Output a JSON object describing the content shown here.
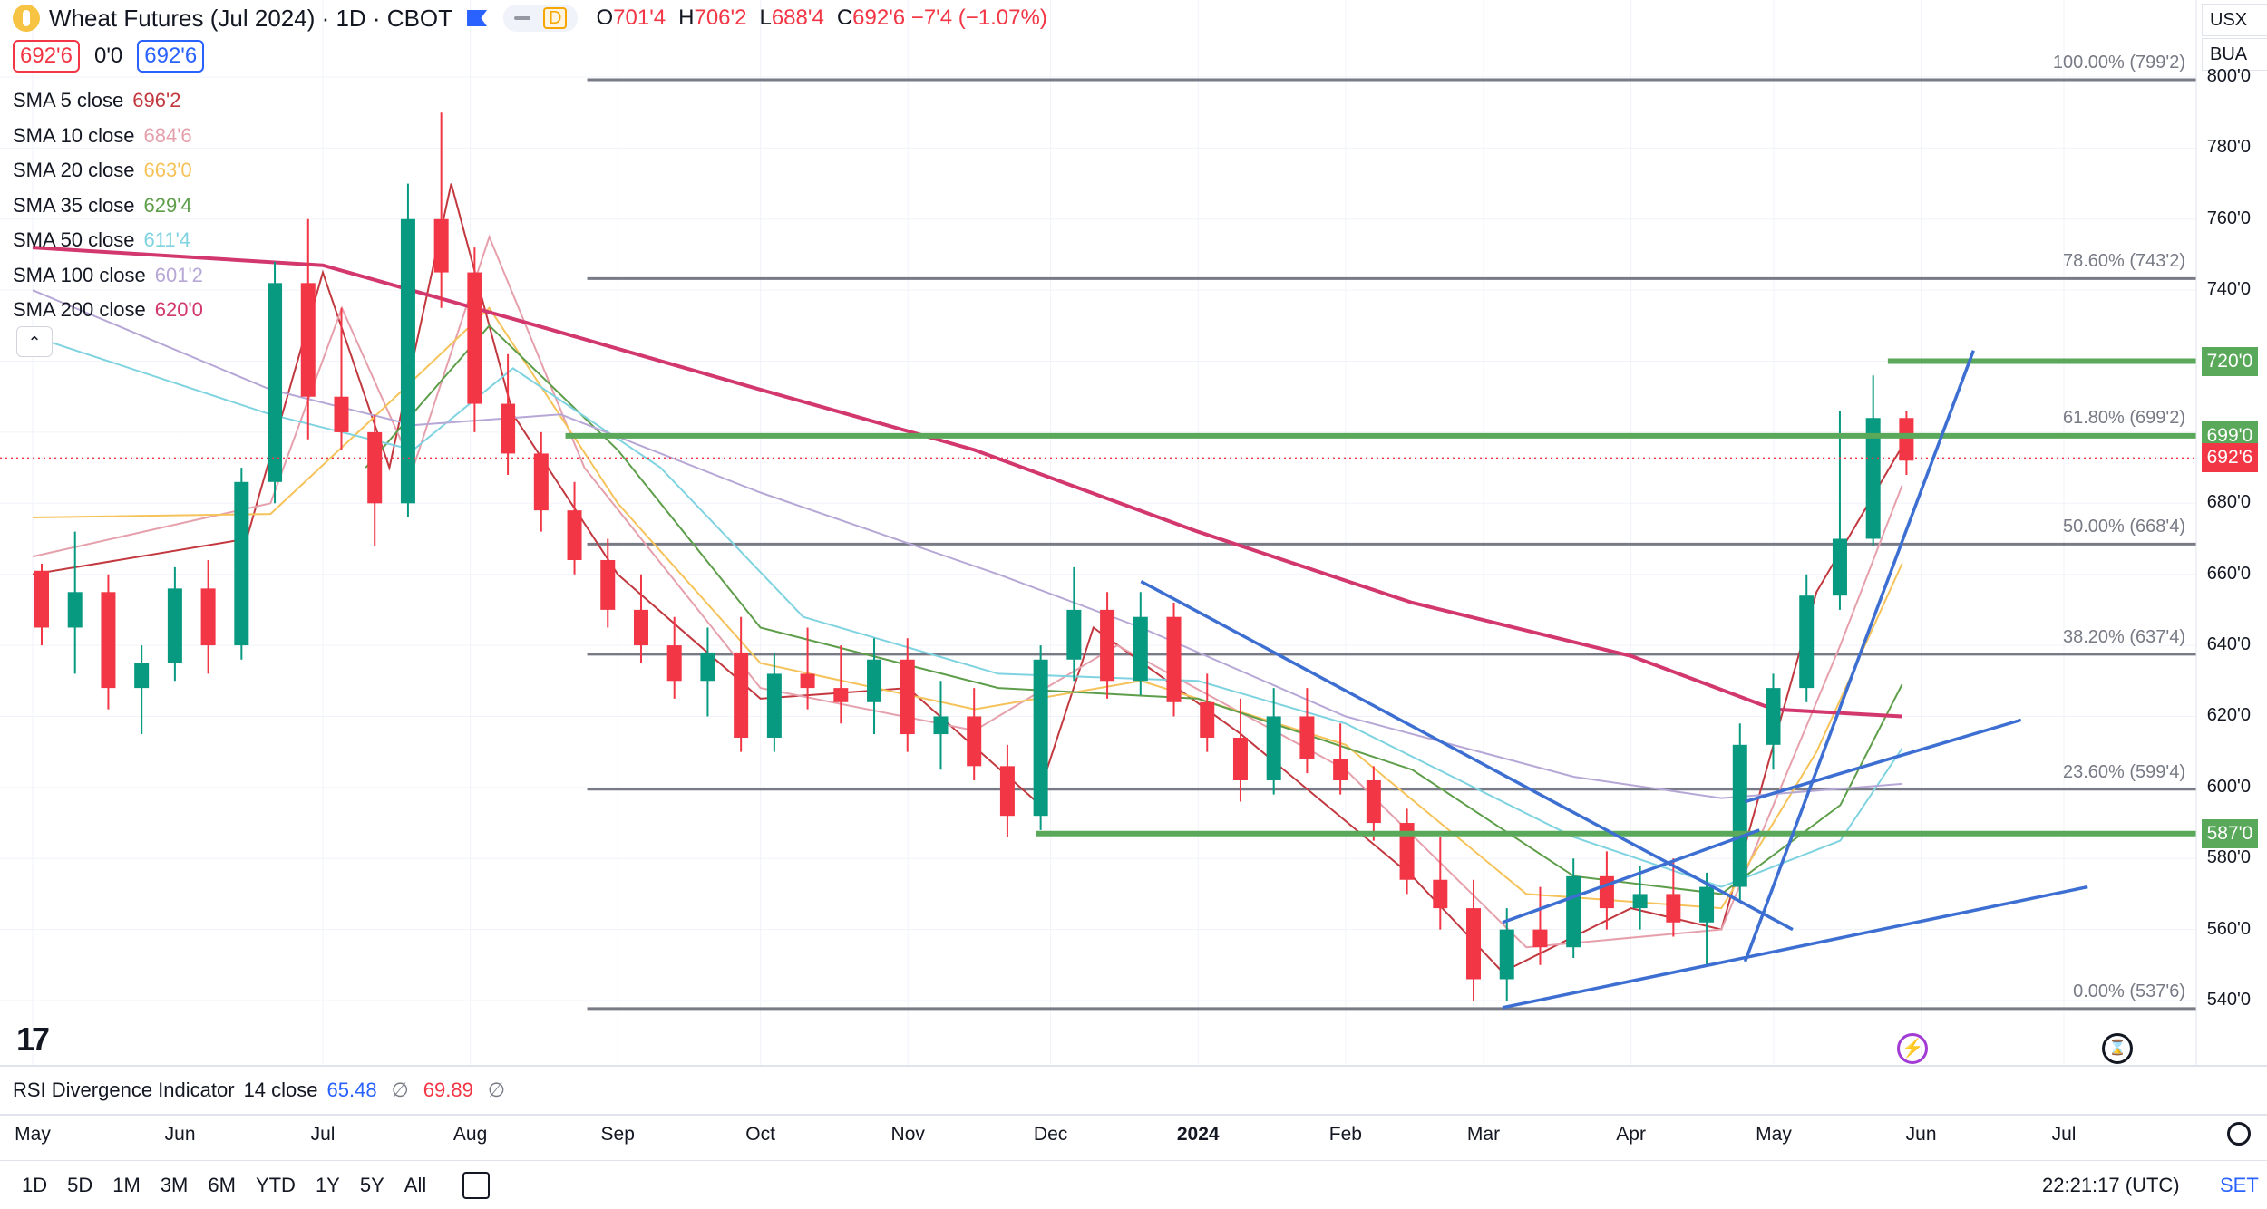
{
  "header": {
    "title": "Wheat Futures (Jul 2024) · 1D · CBOT",
    "mode_label": "D",
    "ohlc": [
      {
        "k": "O",
        "v": "701'4"
      },
      {
        "k": "H",
        "v": "706'2"
      },
      {
        "k": "L",
        "v": "688'4"
      },
      {
        "k": "C",
        "v": "692'6 −7'4 (−1.07%)"
      }
    ],
    "sell_price": "692'6",
    "spread": "0'0",
    "buy_price": "692'6"
  },
  "right_controls": {
    "currency": "USX",
    "unit": "BUA"
  },
  "legend": [
    {
      "name": "SMA 5 close",
      "value": "696'2",
      "color": "#c2383f"
    },
    {
      "name": "SMA 10 close",
      "value": "684'6",
      "color": "#e5a0ac"
    },
    {
      "name": "SMA 20 close",
      "value": "663'0",
      "color": "#f5c35a"
    },
    {
      "name": "SMA 35 close",
      "value": "629'4",
      "color": "#5e9e4a"
    },
    {
      "name": "SMA 50 close",
      "value": "611'4",
      "color": "#7fd3e0"
    },
    {
      "name": "SMA 100 close",
      "value": "601'2",
      "color": "#b7a7d6"
    },
    {
      "name": "SMA 200 close",
      "value": "620'0",
      "color": "#d2376e"
    }
  ],
  "rsi": {
    "label": "RSI Divergence Indicator",
    "params": "14 close",
    "value1": "65.48",
    "value2": "69.89",
    "glyph": "∅"
  },
  "collapse_glyph": "⌃",
  "tv_logo": "17",
  "bottom_bar": {
    "ranges": [
      "1D",
      "5D",
      "1M",
      "3M",
      "6M",
      "YTD",
      "1Y",
      "5Y",
      "All"
    ],
    "clock": "22:21:17 (UTC)",
    "session": "SET"
  },
  "chart_data": {
    "type": "candlestick",
    "x_axis": {
      "ticks": [
        {
          "label": "May",
          "date": "2023-05-01"
        },
        {
          "label": "Jun",
          "date": "2023-06-01"
        },
        {
          "label": "Jul",
          "date": "2023-07-01"
        },
        {
          "label": "Aug",
          "date": "2023-08-01"
        },
        {
          "label": "Sep",
          "date": "2023-09-01"
        },
        {
          "label": "Oct",
          "date": "2023-10-01"
        },
        {
          "label": "Nov",
          "date": "2023-11-01"
        },
        {
          "label": "Dec",
          "date": "2023-12-01"
        },
        {
          "label": "2024",
          "date": "2024-01-01",
          "bold": true
        },
        {
          "label": "Feb",
          "date": "2024-02-01"
        },
        {
          "label": "Mar",
          "date": "2024-03-01"
        },
        {
          "label": "Apr",
          "date": "2024-04-01"
        },
        {
          "label": "May",
          "date": "2024-05-01"
        },
        {
          "label": "Jun",
          "date": "2024-06-01"
        },
        {
          "label": "Jul",
          "date": "2024-07-01"
        }
      ]
    },
    "y_axis": {
      "ylim": [
        525,
        805
      ],
      "ticks": [
        "800'0",
        "780'0",
        "760'0",
        "740'0",
        "720'0",
        "700'0",
        "680'0",
        "660'0",
        "640'0",
        "620'0",
        "600'0",
        "580'0",
        "560'0",
        "540'0"
      ],
      "tick_values": [
        800,
        780,
        760,
        740,
        720,
        700,
        680,
        660,
        640,
        620,
        600,
        580,
        560,
        540
      ]
    },
    "candles": [
      [
        "2023-05-01",
        661,
        663,
        640,
        645
      ],
      [
        "2023-05-08",
        645,
        672,
        632,
        655
      ],
      [
        "2023-05-15",
        655,
        660,
        622,
        628
      ],
      [
        "2023-05-22",
        628,
        640,
        615,
        635
      ],
      [
        "2023-05-29",
        635,
        662,
        630,
        656
      ],
      [
        "2023-06-05",
        656,
        664,
        632,
        640
      ],
      [
        "2023-06-12",
        640,
        690,
        636,
        686
      ],
      [
        "2023-06-19",
        686,
        748,
        680,
        742
      ],
      [
        "2023-06-26",
        742,
        760,
        698,
        710
      ],
      [
        "2023-07-03",
        710,
        735,
        695,
        700
      ],
      [
        "2023-07-10",
        700,
        705,
        668,
        680
      ],
      [
        "2023-07-17",
        680,
        770,
        676,
        760
      ],
      [
        "2023-07-24",
        760,
        790,
        735,
        745
      ],
      [
        "2023-07-31",
        745,
        752,
        700,
        708
      ],
      [
        "2023-08-07",
        708,
        722,
        688,
        694
      ],
      [
        "2023-08-14",
        694,
        700,
        672,
        678
      ],
      [
        "2023-08-21",
        678,
        686,
        660,
        664
      ],
      [
        "2023-08-28",
        664,
        670,
        645,
        650
      ],
      [
        "2023-09-04",
        650,
        660,
        635,
        640
      ],
      [
        "2023-09-11",
        640,
        648,
        625,
        630
      ],
      [
        "2023-09-18",
        630,
        645,
        620,
        638
      ],
      [
        "2023-09-25",
        638,
        648,
        610,
        614
      ],
      [
        "2023-10-02",
        614,
        638,
        610,
        632
      ],
      [
        "2023-10-09",
        632,
        645,
        622,
        628
      ],
      [
        "2023-10-16",
        628,
        640,
        618,
        624
      ],
      [
        "2023-10-23",
        624,
        642,
        615,
        636
      ],
      [
        "2023-10-30",
        636,
        642,
        610,
        615
      ],
      [
        "2023-11-06",
        615,
        630,
        605,
        620
      ],
      [
        "2023-11-13",
        620,
        628,
        602,
        606
      ],
      [
        "2023-11-20",
        606,
        612,
        586,
        592
      ],
      [
        "2023-11-27",
        592,
        640,
        588,
        636
      ],
      [
        "2023-12-04",
        636,
        662,
        630,
        650
      ],
      [
        "2023-12-11",
        650,
        655,
        625,
        630
      ],
      [
        "2023-12-18",
        630,
        655,
        626,
        648
      ],
      [
        "2023-12-25",
        648,
        652,
        620,
        624
      ],
      [
        "2024-01-01",
        624,
        632,
        610,
        614
      ],
      [
        "2024-01-08",
        614,
        625,
        596,
        602
      ],
      [
        "2024-01-15",
        602,
        628,
        598,
        620
      ],
      [
        "2024-01-22",
        620,
        628,
        604,
        608
      ],
      [
        "2024-01-29",
        608,
        618,
        598,
        602
      ],
      [
        "2024-02-05",
        602,
        606,
        585,
        590
      ],
      [
        "2024-02-12",
        590,
        594,
        570,
        574
      ],
      [
        "2024-02-19",
        574,
        586,
        560,
        566
      ],
      [
        "2024-02-26",
        566,
        574,
        540,
        546
      ],
      [
        "2024-03-04",
        546,
        566,
        540,
        560
      ],
      [
        "2024-03-11",
        560,
        572,
        550,
        555
      ],
      [
        "2024-03-18",
        555,
        580,
        552,
        575
      ],
      [
        "2024-03-25",
        575,
        582,
        560,
        566
      ],
      [
        "2024-04-01",
        566,
        578,
        560,
        570
      ],
      [
        "2024-04-08",
        570,
        580,
        558,
        562
      ],
      [
        "2024-04-15",
        562,
        576,
        550,
        572
      ],
      [
        "2024-04-22",
        572,
        618,
        568,
        612
      ],
      [
        "2024-04-29",
        612,
        632,
        605,
        628
      ],
      [
        "2024-05-06",
        628,
        660,
        624,
        654
      ],
      [
        "2024-05-13",
        654,
        706,
        650,
        670
      ],
      [
        "2024-05-20",
        670,
        716,
        668,
        704
      ],
      [
        "2024-05-27",
        704,
        706,
        688,
        692
      ]
    ],
    "series": [
      {
        "name": "SMA 5 close",
        "color": "#c2383f",
        "points": [
          [
            "2023-05-01",
            660
          ],
          [
            "2023-06-15",
            670
          ],
          [
            "2023-07-01",
            745
          ],
          [
            "2023-07-15",
            690
          ],
          [
            "2023-07-28",
            770
          ],
          [
            "2023-08-10",
            705
          ],
          [
            "2023-09-01",
            660
          ],
          [
            "2023-10-01",
            625
          ],
          [
            "2023-11-01",
            628
          ],
          [
            "2023-11-28",
            596
          ],
          [
            "2023-12-10",
            645
          ],
          [
            "2024-01-10",
            615
          ],
          [
            "2024-02-15",
            575
          ],
          [
            "2024-03-05",
            548
          ],
          [
            "2024-04-01",
            566
          ],
          [
            "2024-04-20",
            560
          ],
          [
            "2024-05-10",
            655
          ],
          [
            "2024-05-28",
            696
          ]
        ]
      },
      {
        "name": "SMA 10 close",
        "color": "#e5a0ac",
        "points": [
          [
            "2023-05-01",
            665
          ],
          [
            "2023-06-20",
            680
          ],
          [
            "2023-07-05",
            735
          ],
          [
            "2023-07-20",
            690
          ],
          [
            "2023-08-05",
            755
          ],
          [
            "2023-08-25",
            690
          ],
          [
            "2023-10-01",
            628
          ],
          [
            "2023-11-15",
            616
          ],
          [
            "2023-12-15",
            640
          ],
          [
            "2024-02-01",
            605
          ],
          [
            "2024-03-10",
            555
          ],
          [
            "2024-04-20",
            560
          ],
          [
            "2024-05-15",
            640
          ],
          [
            "2024-05-28",
            685
          ]
        ]
      },
      {
        "name": "SMA 20 close",
        "color": "#f5c35a",
        "points": [
          [
            "2023-05-01",
            676
          ],
          [
            "2023-06-20",
            677
          ],
          [
            "2023-07-10",
            702
          ],
          [
            "2023-08-05",
            735
          ],
          [
            "2023-09-01",
            680
          ],
          [
            "2023-10-01",
            635
          ],
          [
            "2023-11-15",
            622
          ],
          [
            "2023-12-20",
            630
          ],
          [
            "2024-02-01",
            612
          ],
          [
            "2024-03-10",
            570
          ],
          [
            "2024-04-20",
            566
          ],
          [
            "2024-05-10",
            610
          ],
          [
            "2024-05-28",
            663
          ]
        ]
      },
      {
        "name": "SMA 35 close",
        "color": "#5e9e4a",
        "points": [
          [
            "2023-07-10",
            690
          ],
          [
            "2023-08-05",
            730
          ],
          [
            "2023-09-01",
            695
          ],
          [
            "2023-10-01",
            645
          ],
          [
            "2023-11-20",
            628
          ],
          [
            "2024-01-01",
            625
          ],
          [
            "2024-02-15",
            605
          ],
          [
            "2024-03-20",
            575
          ],
          [
            "2024-04-20",
            570
          ],
          [
            "2024-05-15",
            595
          ],
          [
            "2024-05-28",
            629
          ]
        ]
      },
      {
        "name": "SMA 50 close",
        "color": "#7fd3e0",
        "points": [
          [
            "2023-05-01",
            727
          ],
          [
            "2023-06-20",
            705
          ],
          [
            "2023-07-20",
            695
          ],
          [
            "2023-08-10",
            718
          ],
          [
            "2023-09-10",
            690
          ],
          [
            "2023-10-10",
            648
          ],
          [
            "2023-11-20",
            632
          ],
          [
            "2024-01-01",
            630
          ],
          [
            "2024-02-01",
            618
          ],
          [
            "2024-03-20",
            586
          ],
          [
            "2024-04-20",
            572
          ],
          [
            "2024-05-15",
            585
          ],
          [
            "2024-05-28",
            611
          ]
        ]
      },
      {
        "name": "SMA 100 close",
        "color": "#b7a7d6",
        "points": [
          [
            "2023-05-01",
            740
          ],
          [
            "2023-06-20",
            712
          ],
          [
            "2023-07-20",
            702
          ],
          [
            "2023-08-20",
            705
          ],
          [
            "2023-10-01",
            683
          ],
          [
            "2023-11-20",
            660
          ],
          [
            "2023-12-20",
            645
          ],
          [
            "2024-02-01",
            620
          ],
          [
            "2024-03-20",
            603
          ],
          [
            "2024-04-20",
            597
          ],
          [
            "2024-05-28",
            601
          ]
        ]
      },
      {
        "name": "SMA 200 close",
        "color": "#d2376e",
        "points": [
          [
            "2023-05-01",
            752
          ],
          [
            "2023-07-01",
            747
          ],
          [
            "2023-08-15",
            730
          ],
          [
            "2023-10-01",
            712
          ],
          [
            "2023-11-15",
            695
          ],
          [
            "2024-01-01",
            672
          ],
          [
            "2024-02-15",
            652
          ],
          [
            "2024-04-01",
            637
          ],
          [
            "2024-05-01",
            622
          ],
          [
            "2024-05-28",
            620
          ]
        ]
      }
    ],
    "fib_levels": [
      {
        "label": "100.00% (799'2)",
        "value": 799.25,
        "line": "#787b86"
      },
      {
        "label": "78.60% (743'2)",
        "value": 743.25,
        "line": "#787b86"
      },
      {
        "label": "61.80% (699'2)",
        "value": 699.25,
        "line": "#787b86"
      },
      {
        "label": "50.00% (668'4)",
        "value": 668.5,
        "line": "#787b86"
      },
      {
        "label": "38.20% (637'4)",
        "value": 637.5,
        "line": "#787b86"
      },
      {
        "label": "23.60% (599'4)",
        "value": 599.5,
        "line": "#787b86"
      },
      {
        "label": "0.00% (537'6)",
        "value": 537.75,
        "line": "#787b86"
      }
    ],
    "fib_start_date": "2023-08-21",
    "fib_end_date": "2024-07-31",
    "horizontal_levels": [
      {
        "label": "720'0",
        "value": 720,
        "from": "2024-05-25",
        "color": "#5aa85a"
      },
      {
        "label": "699'0",
        "value": 699,
        "from": "2023-08-21",
        "color": "#5aa85a"
      },
      {
        "label": "587'0",
        "value": 587,
        "from": "2023-11-28",
        "color": "#5aa85a"
      }
    ],
    "last_price": {
      "label": "692'6",
      "value": 692.75,
      "color": "#f23645"
    },
    "trendlines": [
      {
        "from": [
          "2023-12-20",
          658
        ],
        "to": [
          "2024-05-05",
          560
        ],
        "color": "#3c6fd1"
      },
      {
        "from": [
          "2024-03-05",
          562
        ],
        "to": [
          "2024-04-28",
          588
        ],
        "color": "#3c6fd1"
      },
      {
        "from": [
          "2024-03-05",
          538
        ],
        "to": [
          "2024-07-06",
          572
        ],
        "color": "#3c6fd1"
      },
      {
        "from": [
          "2024-04-25",
          551
        ],
        "to": [
          "2024-06-12",
          723
        ],
        "color": "#3c6fd1"
      },
      {
        "from": [
          "2024-04-25",
          596
        ],
        "to": [
          "2024-06-22",
          619
        ],
        "color": "#3c6fd1"
      }
    ]
  }
}
